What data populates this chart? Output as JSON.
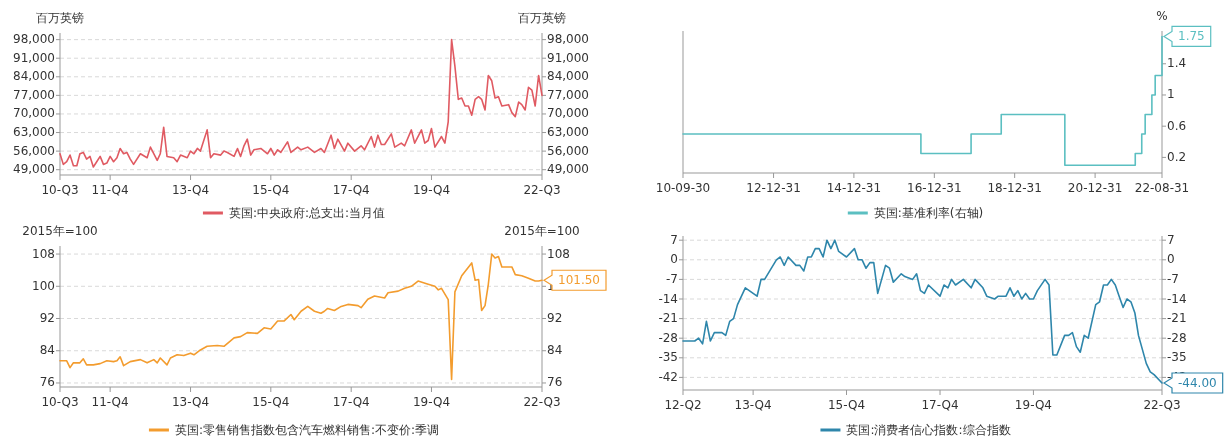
{
  "chart_data": [
    {
      "type": "line",
      "ylabel": "百万英镑",
      "y2label": "百万英镑",
      "grid": "y",
      "legend": "bottom",
      "xlim": [
        "2010-09",
        "2022-09"
      ],
      "xticks": [
        {
          "value": "2010-09",
          "label": "10-Q3"
        },
        {
          "value": "2011-12",
          "label": "11-Q4"
        },
        {
          "value": "2013-12",
          "label": "13-Q4"
        },
        {
          "value": "2015-12",
          "label": "15-Q4"
        },
        {
          "value": "2017-12",
          "label": "17-Q4"
        },
        {
          "value": "2019-12",
          "label": "19-Q4"
        },
        {
          "value": "2022-09",
          "label": "22-Q3"
        }
      ],
      "ylim": [
        47000,
        100500
      ],
      "yticks": [
        {
          "value": 49000,
          "label": "49,000"
        },
        {
          "value": 56000,
          "label": "56,000"
        },
        {
          "value": 63000,
          "label": "63,000"
        },
        {
          "value": 70000,
          "label": "70,000"
        },
        {
          "value": 77000,
          "label": "77,000"
        },
        {
          "value": 84000,
          "label": "84,000"
        },
        {
          "value": 91000,
          "label": "91,000"
        },
        {
          "value": 98000,
          "label": "98,000"
        }
      ],
      "y2lim": [
        47000,
        100500
      ],
      "y2ticks": [
        {
          "value": 49000,
          "label": "49,000"
        },
        {
          "value": 56000,
          "label": "56,000"
        },
        {
          "value": 63000,
          "label": "63,000"
        },
        {
          "value": 70000,
          "label": "70,000"
        },
        {
          "value": 77000,
          "label": "77,000"
        },
        {
          "value": 84000,
          "label": "84,000"
        },
        {
          "value": 91000,
          "label": "91,000"
        },
        {
          "value": 98000,
          "label": "98,000"
        }
      ],
      "x": [
        "2010-09",
        "2010-10",
        "2010-11",
        "2010-12",
        "2011-01",
        "2011-02",
        "2011-03",
        "2011-04",
        "2011-05",
        "2011-06",
        "2011-07",
        "2011-08",
        "2011-09",
        "2011-10",
        "2011-11",
        "2011-12",
        "2012-01",
        "2012-02",
        "2012-03",
        "2012-04",
        "2012-05",
        "2012-06",
        "2012-07",
        "2012-09",
        "2012-11",
        "2012-12",
        "2013-02",
        "2013-03",
        "2013-04",
        "2013-05",
        "2013-07",
        "2013-08",
        "2013-09",
        "2013-11",
        "2013-12",
        "2014-01",
        "2014-02",
        "2014-03",
        "2014-05",
        "2014-06",
        "2014-07",
        "2014-09",
        "2014-10",
        "2014-11",
        "2015-01",
        "2015-02",
        "2015-03",
        "2015-04",
        "2015-05",
        "2015-06",
        "2015-07",
        "2015-09",
        "2015-11",
        "2015-12",
        "2016-01",
        "2016-02",
        "2016-03",
        "2016-05",
        "2016-06",
        "2016-08",
        "2016-09",
        "2016-11",
        "2017-01",
        "2017-03",
        "2017-04",
        "2017-06",
        "2017-07",
        "2017-08",
        "2017-10",
        "2017-11",
        "2018-01",
        "2018-03",
        "2018-04",
        "2018-06",
        "2018-07",
        "2018-08",
        "2018-09",
        "2018-10",
        "2018-12",
        "2019-01",
        "2019-03",
        "2019-04",
        "2019-06",
        "2019-07",
        "2019-09",
        "2019-10",
        "2019-11",
        "2019-12",
        "2020-01",
        "2020-03",
        "2020-04",
        "2020-05",
        "2020-06",
        "2020-07",
        "2020-08",
        "2020-09",
        "2020-10",
        "2020-11",
        "2020-12",
        "2021-01",
        "2021-02",
        "2021-03",
        "2021-04",
        "2021-05",
        "2021-06",
        "2021-07",
        "2021-08",
        "2021-09",
        "2021-11",
        "2021-12",
        "2022-01",
        "2022-02",
        "2022-03",
        "2022-04",
        "2022-05",
        "2022-06",
        "2022-07",
        "2022-08",
        "2022-09"
      ],
      "series": [
        {
          "name": "英国:中央政府:总支出:当月值",
          "color": "#e05a62",
          "values": [
            55000,
            51000,
            52000,
            54500,
            50500,
            50500,
            55000,
            55500,
            53000,
            54000,
            50000,
            52000,
            54000,
            51000,
            51500,
            54000,
            52000,
            53500,
            57000,
            55000,
            55500,
            53000,
            51000,
            55000,
            53500,
            57500,
            52500,
            55000,
            65000,
            54000,
            53500,
            52000,
            54500,
            53500,
            56000,
            55000,
            57000,
            56000,
            64000,
            53500,
            55000,
            54500,
            56000,
            55500,
            54000,
            57000,
            54000,
            58000,
            60500,
            54500,
            56500,
            57000,
            55000,
            57000,
            54500,
            56500,
            55500,
            59500,
            55500,
            57500,
            56500,
            57500,
            55500,
            57000,
            55500,
            62000,
            57000,
            60500,
            56000,
            59000,
            56000,
            58000,
            56500,
            61500,
            57500,
            62000,
            58500,
            58500,
            62500,
            57500,
            59000,
            58000,
            64000,
            59000,
            64000,
            59000,
            60000,
            64500,
            57500,
            61500,
            59000,
            67000,
            98000,
            88000,
            75500,
            76000,
            73000,
            73000,
            69500,
            75500,
            76500,
            75500,
            71500,
            84500,
            82500,
            76000,
            76500,
            73000,
            73500,
            70500,
            69000,
            74500,
            73500,
            71500,
            80000,
            79000,
            73000,
            84500,
            77000
          ]
        }
      ]
    },
    {
      "type": "step",
      "y2label": "%",
      "legend": "bottom",
      "xlim": [
        "2010-09-30",
        "2022-08-31"
      ],
      "xticks": [
        {
          "value": "2010-09-30",
          "label": "10-09-30"
        },
        {
          "value": "2012-12-31",
          "label": "12-12-31"
        },
        {
          "value": "2014-12-31",
          "label": "14-12-31"
        },
        {
          "value": "2016-12-31",
          "label": "16-12-31"
        },
        {
          "value": "2018-12-31",
          "label": "18-12-31"
        },
        {
          "value": "2020-12-31",
          "label": "20-12-31"
        },
        {
          "value": "2022-08-31",
          "label": "22-08-31"
        }
      ],
      "y2lim": [
        0,
        1.82
      ],
      "y2ticks": [
        0.2,
        0.6,
        1,
        1.4
      ],
      "x": [
        "2010-09-30",
        "2016-08-31",
        "2017-11-30",
        "2018-08-31",
        "2020-03-31",
        "2021-12-31",
        "2022-02-28",
        "2022-03-31",
        "2022-05-31",
        "2022-06-30",
        "2022-08-31"
      ],
      "series": [
        {
          "name": "英国:基准利率(右轴)",
          "color": "#5bbfc1",
          "axis": "y2",
          "values": [
            0.5,
            0.25,
            0.5,
            0.75,
            0.1,
            0.25,
            0.5,
            0.75,
            1,
            1.25,
            1.75
          ],
          "value_labels": [
            null,
            null,
            null,
            null,
            null,
            null,
            null,
            null,
            null,
            null,
            "1.75"
          ]
        }
      ]
    },
    {
      "type": "line",
      "ylabel": "2015年=100",
      "y2label": "2015年=100",
      "grid": "y",
      "legend": "bottom",
      "xlim": [
        "2010-09",
        "2022-09"
      ],
      "xticks": [
        {
          "value": "2010-09",
          "label": "10-Q3"
        },
        {
          "value": "2011-12",
          "label": "11-Q4"
        },
        {
          "value": "2013-12",
          "label": "13-Q4"
        },
        {
          "value": "2015-12",
          "label": "15-Q4"
        },
        {
          "value": "2017-12",
          "label": "17-Q4"
        },
        {
          "value": "2019-12",
          "label": "19-Q4"
        },
        {
          "value": "2022-09",
          "label": "22-Q3"
        }
      ],
      "ylim": [
        75,
        110
      ],
      "yticks": [
        76,
        84,
        92,
        100,
        108
      ],
      "y2lim": [
        75,
        110
      ],
      "y2ticks": [
        76,
        84,
        92,
        100,
        108
      ],
      "x": [
        "2010-09",
        "2010-11",
        "2010-12",
        "2011-01",
        "2011-03",
        "2011-04",
        "2011-05",
        "2011-07",
        "2011-09",
        "2011-11",
        "2012-01",
        "2012-02",
        "2012-03",
        "2012-04",
        "2012-06",
        "2012-09",
        "2012-11",
        "2013-01",
        "2013-02",
        "2013-03",
        "2013-05",
        "2013-06",
        "2013-08",
        "2013-10",
        "2013-12",
        "2014-01",
        "2014-03",
        "2014-05",
        "2014-08",
        "2014-10",
        "2015-01",
        "2015-03",
        "2015-05",
        "2015-08",
        "2015-10",
        "2015-12",
        "2016-02",
        "2016-04",
        "2016-06",
        "2016-07",
        "2016-09",
        "2016-11",
        "2017-01",
        "2017-03",
        "2017-04",
        "2017-05",
        "2017-07",
        "2017-09",
        "2017-11",
        "2018-02",
        "2018-03",
        "2018-05",
        "2018-07",
        "2018-10",
        "2018-11",
        "2019-02",
        "2019-04",
        "2019-06",
        "2019-08",
        "2019-11",
        "2020-01",
        "2020-02",
        "2020-03",
        "2020-05",
        "2020-06",
        "2020-07",
        "2020-09",
        "2020-12",
        "2021-01",
        "2021-02",
        "2021-03",
        "2021-04",
        "2021-05",
        "2021-06",
        "2021-07",
        "2021-08",
        "2021-09",
        "2021-11",
        "2021-12",
        "2022-01",
        "2022-03",
        "2022-05",
        "2022-07",
        "2022-08",
        "2022-09"
      ],
      "series": [
        {
          "name": "英国:零售销售指数包含汽车燃料销售:不变价:季调",
          "color": "#f39c2e",
          "values": [
            81.5,
            81.5,
            79.8,
            81,
            81,
            82,
            80.5,
            80.5,
            80.8,
            81.5,
            81.3,
            81.5,
            82.5,
            80.3,
            81.3,
            81.8,
            81,
            81.8,
            81,
            82.2,
            80.5,
            82.2,
            83,
            82.8,
            83.4,
            83,
            84.2,
            85.1,
            85.3,
            85.1,
            87.2,
            87.5,
            88.5,
            88.3,
            89.7,
            89.4,
            91.4,
            91.4,
            93,
            91.7,
            93.8,
            95,
            93.8,
            93.3,
            93.8,
            94.5,
            94,
            95,
            95.5,
            95.2,
            94.7,
            96.8,
            97.6,
            97.1,
            98.4,
            98.8,
            99.5,
            100,
            101.3,
            100.5,
            100,
            99.1,
            99.5,
            96.7,
            76.9,
            98.6,
            102.6,
            105.8,
            101.5,
            101.7,
            94,
            95.2,
            100.5,
            108,
            107,
            107.4,
            104.8,
            104.8,
            104.8,
            102.9,
            102.6,
            102,
            101.3,
            101.3,
            101.5
          ]
        }
      ],
      "annotations": [
        {
          "text": "101.50",
          "x": "2022-09",
          "y": 101.5
        }
      ]
    },
    {
      "type": "line",
      "grid": "y",
      "legend": "bottom",
      "xlim": [
        "2012-06",
        "2022-09"
      ],
      "xticks": [
        {
          "value": "2012-06",
          "label": "12-Q2"
        },
        {
          "value": "2013-12",
          "label": "13-Q4"
        },
        {
          "value": "2015-12",
          "label": "15-Q4"
        },
        {
          "value": "2017-12",
          "label": "17-Q4"
        },
        {
          "value": "2019-12",
          "label": "19-Q4"
        },
        {
          "value": "2022-09",
          "label": "22-Q3"
        }
      ],
      "ylim": [
        -46.5,
        8.5
      ],
      "yticks": [
        -42,
        -35,
        -28,
        -21,
        -14,
        -7,
        0,
        7
      ],
      "y2lim": [
        -46.5,
        8.5
      ],
      "y2ticks": [
        -42,
        -35,
        -28,
        -21,
        -14,
        -7,
        0,
        7
      ],
      "x": [
        "2012-06",
        "2012-09",
        "2012-10",
        "2012-11",
        "2012-12",
        "2013-01",
        "2013-02",
        "2013-04",
        "2013-05",
        "2013-06",
        "2013-07",
        "2013-08",
        "2013-10",
        "2014-01",
        "2014-02",
        "2014-03",
        "2014-06",
        "2014-07",
        "2014-08",
        "2014-09",
        "2014-11",
        "2014-12",
        "2015-01",
        "2015-02",
        "2015-03",
        "2015-04",
        "2015-05",
        "2015-06",
        "2015-07",
        "2015-08",
        "2015-09",
        "2015-10",
        "2015-12",
        "2016-02",
        "2016-03",
        "2016-04",
        "2016-05",
        "2016-06",
        "2016-07",
        "2016-08",
        "2016-10",
        "2016-11",
        "2016-12",
        "2017-02",
        "2017-03",
        "2017-05",
        "2017-06",
        "2017-07",
        "2017-08",
        "2017-09",
        "2017-12",
        "2018-01",
        "2018-02",
        "2018-03",
        "2018-04",
        "2018-06",
        "2018-08",
        "2018-09",
        "2018-11",
        "2018-12",
        "2019-02",
        "2019-03",
        "2019-05",
        "2019-06",
        "2019-07",
        "2019-08",
        "2019-09",
        "2019-10",
        "2019-11",
        "2019-12",
        "2020-01",
        "2020-03",
        "2020-04",
        "2020-05",
        "2020-06",
        "2020-08",
        "2020-09",
        "2020-10",
        "2020-11",
        "2020-12",
        "2021-01",
        "2021-02",
        "2021-04",
        "2021-05",
        "2021-06",
        "2021-07",
        "2021-08",
        "2021-09",
        "2021-10",
        "2021-11",
        "2021-12",
        "2022-01",
        "2022-02",
        "2022-03",
        "2022-05",
        "2022-06",
        "2022-07",
        "2022-09"
      ],
      "series": [
        {
          "name": "英国:消费者信心指数:综合指数",
          "color": "#2e86ab",
          "values": [
            -29,
            -29,
            -28,
            -30,
            -22,
            -29,
            -26,
            -26,
            -27,
            -22,
            -21,
            -16,
            -10,
            -13,
            -7,
            -7,
            0,
            1,
            -2,
            1,
            -2,
            -2,
            -4,
            1,
            1,
            4,
            4,
            1,
            7,
            4,
            7,
            3,
            1,
            4,
            0,
            0,
            -3,
            -1,
            -1,
            -12,
            -2,
            -3,
            -8,
            -5,
            -6,
            -7,
            -5,
            -11,
            -12,
            -9,
            -13,
            -9,
            -10,
            -7,
            -9,
            -7,
            -10,
            -7,
            -10,
            -13,
            -14,
            -13,
            -13,
            -10,
            -13,
            -11,
            -14,
            -12,
            -14,
            -14,
            -11,
            -7,
            -9,
            -34,
            -34,
            -27,
            -27,
            -26,
            -31,
            -33,
            -27,
            -28,
            -16,
            -15,
            -9,
            -9,
            -7,
            -9,
            -13,
            -17,
            -14,
            -15,
            -19,
            -27,
            -37,
            -40,
            -41,
            -44
          ]
        }
      ],
      "annotations": [
        {
          "text": "-44.00",
          "x": "2022-09",
          "y": -44
        }
      ]
    }
  ]
}
